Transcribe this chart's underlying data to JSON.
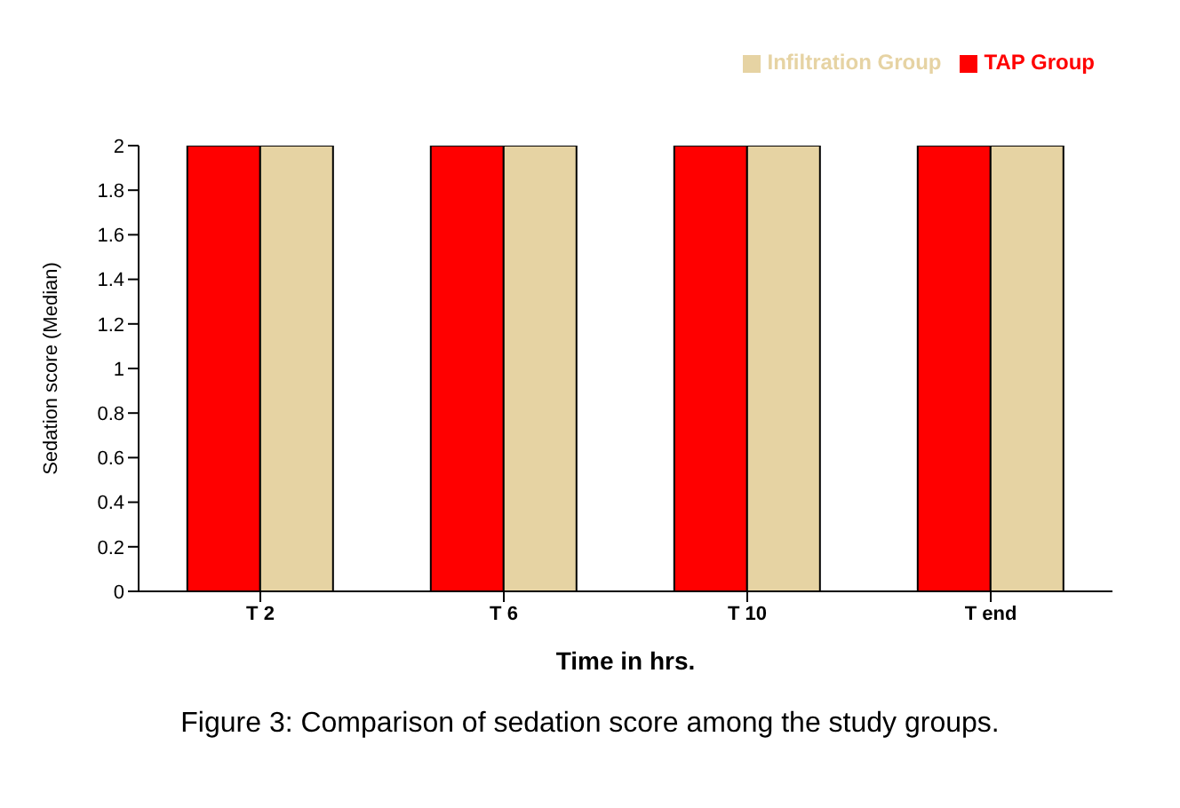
{
  "chart_data": {
    "type": "bar",
    "categories": [
      "T 2",
      "T 6",
      "T 10",
      "T end"
    ],
    "series": [
      {
        "name": "TAP Group",
        "color": "#ff0000",
        "values": [
          2,
          2,
          2,
          2
        ]
      },
      {
        "name": "Infiltration Group",
        "color": "#e6d3a3",
        "values": [
          2,
          2,
          2,
          2
        ]
      }
    ],
    "ylabel": "Sedation score (Median)",
    "xlabel": "Time in hrs.",
    "ylim": [
      0,
      2
    ],
    "yticks": [
      0,
      0.2,
      0.4,
      0.6,
      0.8,
      1,
      1.2,
      1.4,
      1.6,
      1.8,
      2
    ],
    "legend": "top right",
    "grid": false,
    "annotations": [
      "Figure 3: Comparison of sedation score among the study groups."
    ]
  }
}
